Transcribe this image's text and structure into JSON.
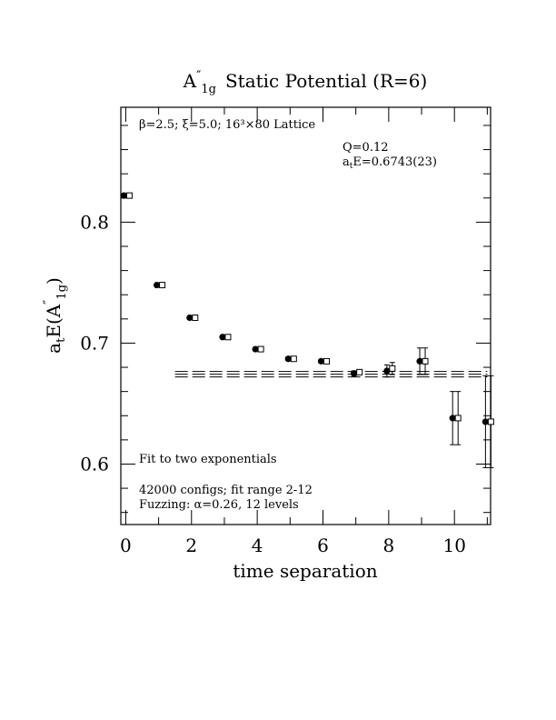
{
  "chart_data": {
    "type": "scatter",
    "title_parts": {
      "main": "A",
      "prime": "″",
      "sub": "1g",
      "rest": "Static Potential (R=6)"
    },
    "xlabel": "time separation",
    "ylabel_parts": {
      "a": "a",
      "a_sub": "t",
      "e": "E(A",
      "prime": "″",
      "sub": "1g",
      "close": ")"
    },
    "xlim": [
      -0.15,
      11.1
    ],
    "ylim": [
      0.55,
      0.895
    ],
    "xticks": [
      0,
      2,
      4,
      6,
      8,
      10
    ],
    "xtick_labels": [
      "0",
      "2",
      "4",
      "6",
      "8",
      "10"
    ],
    "yticks": [
      0.6,
      0.7,
      0.8
    ],
    "ytick_labels": [
      "0.6",
      "0.7",
      "0.8"
    ],
    "series": [
      {
        "marker": "filled-circle",
        "x": [
          0,
          1,
          2,
          3,
          4,
          5,
          6,
          7,
          8,
          9,
          10,
          11
        ],
        "y": [
          0.822,
          0.748,
          0.721,
          0.705,
          0.695,
          0.687,
          0.685,
          0.675,
          0.677,
          0.685,
          0.638,
          0.635
        ],
        "err": [
          0.0005,
          0.0008,
          0.0008,
          0.001,
          0.001,
          0.0015,
          0.0015,
          0.002,
          0.005,
          0.011,
          0.022,
          0.038
        ]
      },
      {
        "marker": "open-square",
        "x": [
          0,
          1,
          2,
          3,
          4,
          5,
          6,
          7,
          8,
          9,
          10,
          11
        ],
        "y": [
          0.822,
          0.748,
          0.721,
          0.705,
          0.695,
          0.687,
          0.685,
          0.676,
          0.679,
          0.685,
          0.638,
          0.635
        ],
        "err": [
          0.0005,
          0.0008,
          0.0008,
          0.001,
          0.001,
          0.0015,
          0.0015,
          0.002,
          0.005,
          0.011,
          0.022,
          0.038
        ]
      }
    ],
    "fit": {
      "x_range": [
        1.5,
        11
      ],
      "central": 0.6743,
      "band": 0.0023
    },
    "annotations": {
      "lattice": "β=2.5; ξ=5.0; 16³×80 Lattice",
      "q": "Q=0.12",
      "energy_a": "a",
      "energy_sub": "t",
      "energy_rest": "E=0.6743(23)",
      "fit_label": "Fit to two exponentials",
      "configs": "42000 configs; fit range 2-12",
      "fuzzing": "Fuzzing: α=0.26, 12 levels"
    }
  }
}
